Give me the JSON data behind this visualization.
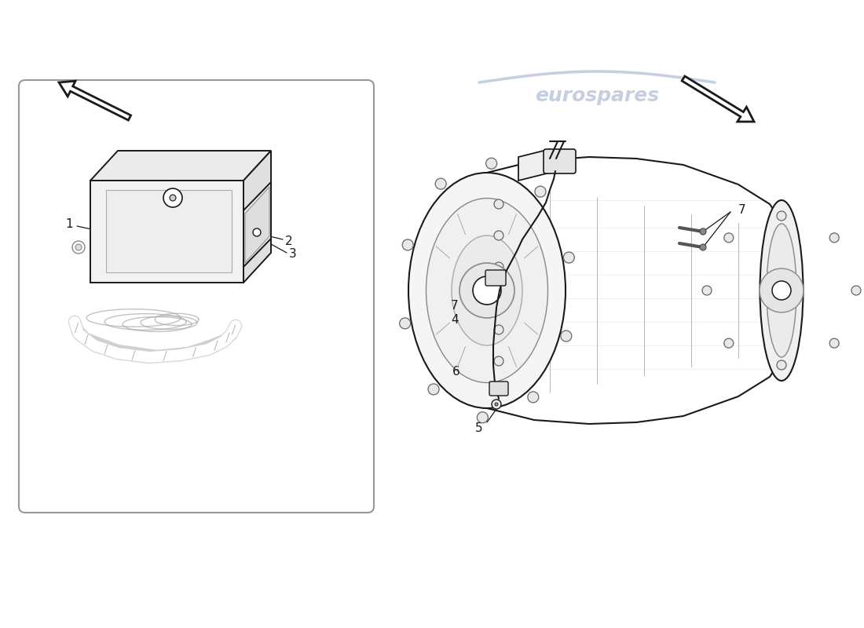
{
  "bg": "#ffffff",
  "lc": "#1a1a1a",
  "wc": "#c5cfe0",
  "watermark_text": "eurospares",
  "wm_fs": 20,
  "wm_alpha": 0.85
}
